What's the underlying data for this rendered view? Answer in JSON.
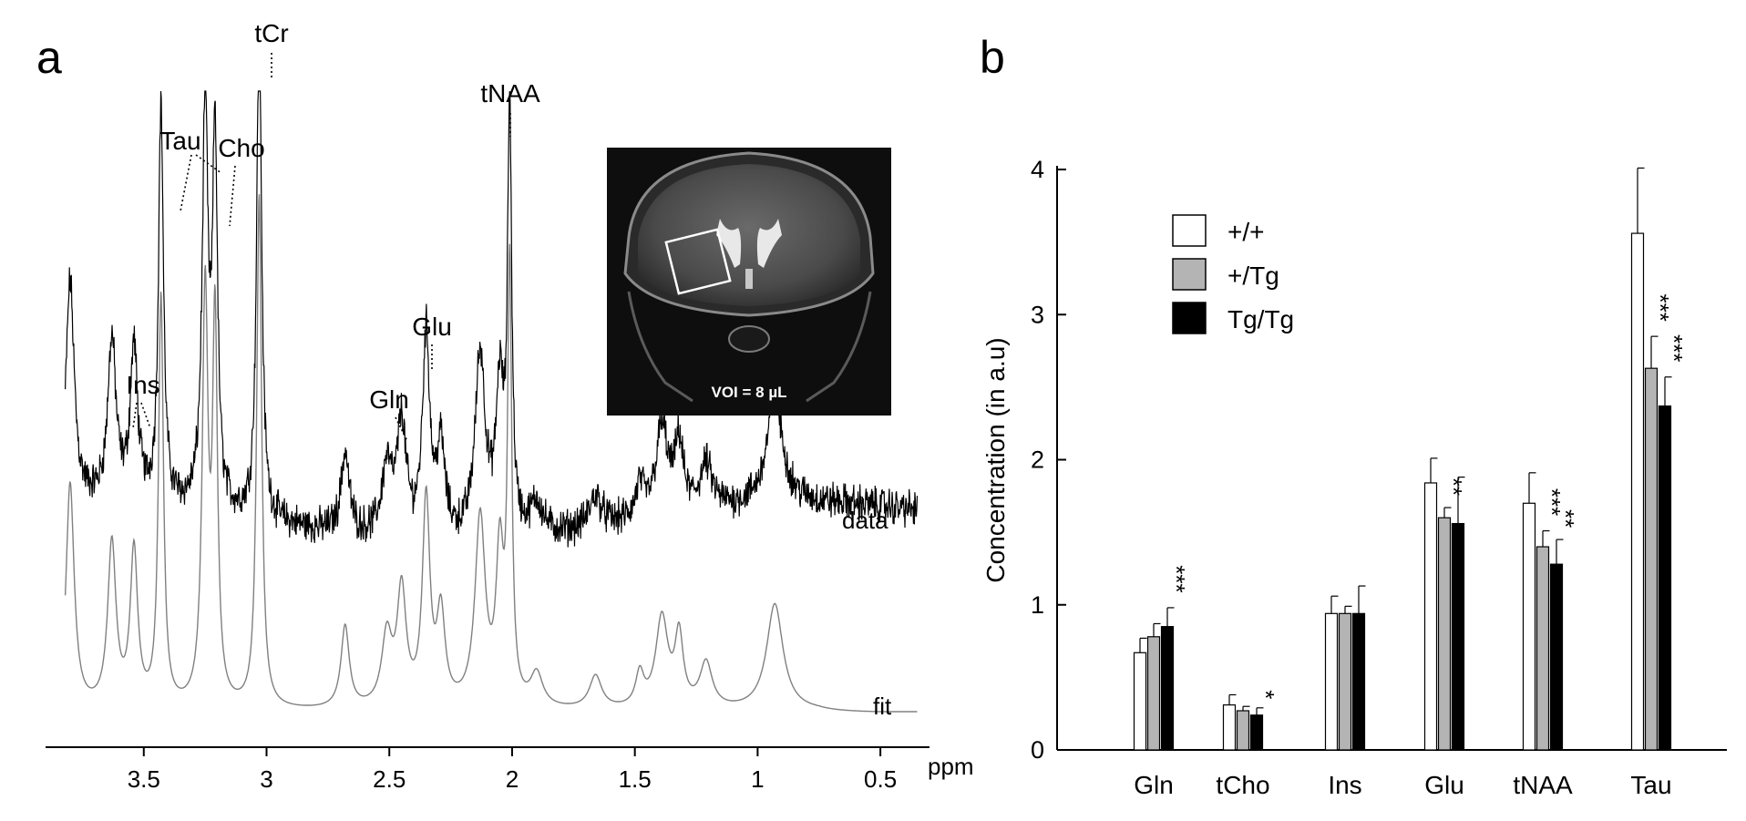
{
  "chart_data": [
    {
      "panel": "a",
      "type": "line",
      "title": "",
      "xlabel": "ppm",
      "x_reversed": true,
      "xlim": [
        3.9,
        0.3
      ],
      "xticks": [
        3.5,
        3,
        2.5,
        2,
        1.5,
        1,
        0.5
      ],
      "xtick_labels": [
        "3.5",
        "3",
        "2.5",
        "2",
        "1.5",
        "1",
        "0.5"
      ],
      "series": [
        {
          "name": "data",
          "color": "#000000"
        },
        {
          "name": "fit",
          "color": "#808080"
        }
      ],
      "peaks": [
        {
          "ppm": 3.8,
          "height": 0.55,
          "width": 0.02
        },
        {
          "ppm": 3.63,
          "height": 0.4,
          "width": 0.02
        },
        {
          "ppm": 3.54,
          "height": 0.38,
          "width": 0.018
        },
        {
          "ppm": 3.43,
          "height": 1.0,
          "width": 0.012
        },
        {
          "ppm": 3.25,
          "height": 1.0,
          "width": 0.014
        },
        {
          "ppm": 3.21,
          "height": 0.92,
          "width": 0.012
        },
        {
          "ppm": 3.03,
          "height": 1.25,
          "width": 0.012
        },
        {
          "ppm": 2.68,
          "height": 0.2,
          "width": 0.02
        },
        {
          "ppm": 2.51,
          "height": 0.17,
          "width": 0.025
        },
        {
          "ppm": 2.45,
          "height": 0.28,
          "width": 0.022
        },
        {
          "ppm": 2.35,
          "height": 0.5,
          "width": 0.018
        },
        {
          "ppm": 2.29,
          "height": 0.22,
          "width": 0.02
        },
        {
          "ppm": 2.13,
          "height": 0.46,
          "width": 0.025
        },
        {
          "ppm": 2.05,
          "height": 0.36,
          "width": 0.018
        },
        {
          "ppm": 2.01,
          "height": 1.05,
          "width": 0.01
        },
        {
          "ppm": 1.9,
          "height": 0.08,
          "width": 0.03
        },
        {
          "ppm": 1.66,
          "height": 0.08,
          "width": 0.03
        },
        {
          "ppm": 1.48,
          "height": 0.08,
          "width": 0.02
        },
        {
          "ppm": 1.39,
          "height": 0.22,
          "width": 0.03
        },
        {
          "ppm": 1.32,
          "height": 0.17,
          "width": 0.02
        },
        {
          "ppm": 1.21,
          "height": 0.11,
          "width": 0.03
        },
        {
          "ppm": 0.93,
          "height": 0.26,
          "width": 0.04
        }
      ],
      "series_labels": [
        {
          "key": "data",
          "text": "data"
        },
        {
          "key": "fit",
          "text": "fit"
        }
      ],
      "annotations": [
        {
          "text": "tCr",
          "ppm": 3.03
        },
        {
          "text": "tNAA",
          "ppm": 2.01
        },
        {
          "text": "Tau",
          "ppm": 3.43
        },
        {
          "text": "Cho",
          "ppm": 3.21
        },
        {
          "text": "Ins",
          "ppm": 3.58
        },
        {
          "text": "Glu",
          "ppm": 2.35
        },
        {
          "text": "Gln",
          "ppm": 2.45
        }
      ],
      "inset": {
        "caption": "VOI = 8 µL",
        "description": "coronal MRI slice with square VOI"
      }
    },
    {
      "panel": "b",
      "type": "bar",
      "title": "",
      "xlabel": "",
      "ylabel": "Concentration (in a.u)",
      "ylim": [
        0,
        4
      ],
      "yticks": [
        0,
        1,
        2,
        3,
        4
      ],
      "categories": [
        "Gln",
        "tCho",
        "Ins",
        "Glu",
        "tNAA",
        "Tau"
      ],
      "series": [
        {
          "name": "+/+",
          "color": "#ffffff",
          "values": [
            0.67,
            0.31,
            0.94,
            1.84,
            1.7,
            3.56
          ],
          "errors": [
            0.1,
            0.07,
            0.12,
            0.17,
            0.21,
            0.45
          ]
        },
        {
          "name": "+/Tg",
          "color": "#b4b4b4",
          "values": [
            0.78,
            0.27,
            0.94,
            1.6,
            1.4,
            2.63
          ],
          "errors": [
            0.09,
            0.03,
            0.05,
            0.07,
            0.11,
            0.22
          ]
        },
        {
          "name": "Tg/Tg",
          "color": "#000000",
          "values": [
            0.85,
            0.24,
            0.94,
            1.56,
            1.28,
            2.37
          ],
          "errors": [
            0.13,
            0.05,
            0.19,
            0.32,
            0.17,
            0.2
          ]
        }
      ],
      "significance": [
        {
          "category": "Gln",
          "series": "Tg/Tg",
          "text": "***"
        },
        {
          "category": "tCho",
          "series": "Tg/Tg",
          "text": "*"
        },
        {
          "category": "Glu",
          "series": "+/Tg",
          "text": "**"
        },
        {
          "category": "tNAA",
          "series": "+/Tg",
          "text": "***"
        },
        {
          "category": "tNAA",
          "series": "Tg/Tg",
          "text": "**"
        },
        {
          "category": "Tau",
          "series": "+/Tg",
          "text": "***"
        },
        {
          "category": "Tau",
          "series": "Tg/Tg",
          "text": "***"
        }
      ],
      "legend": "top-left"
    }
  ],
  "panel_labels": {
    "a": "a",
    "b": "b"
  }
}
